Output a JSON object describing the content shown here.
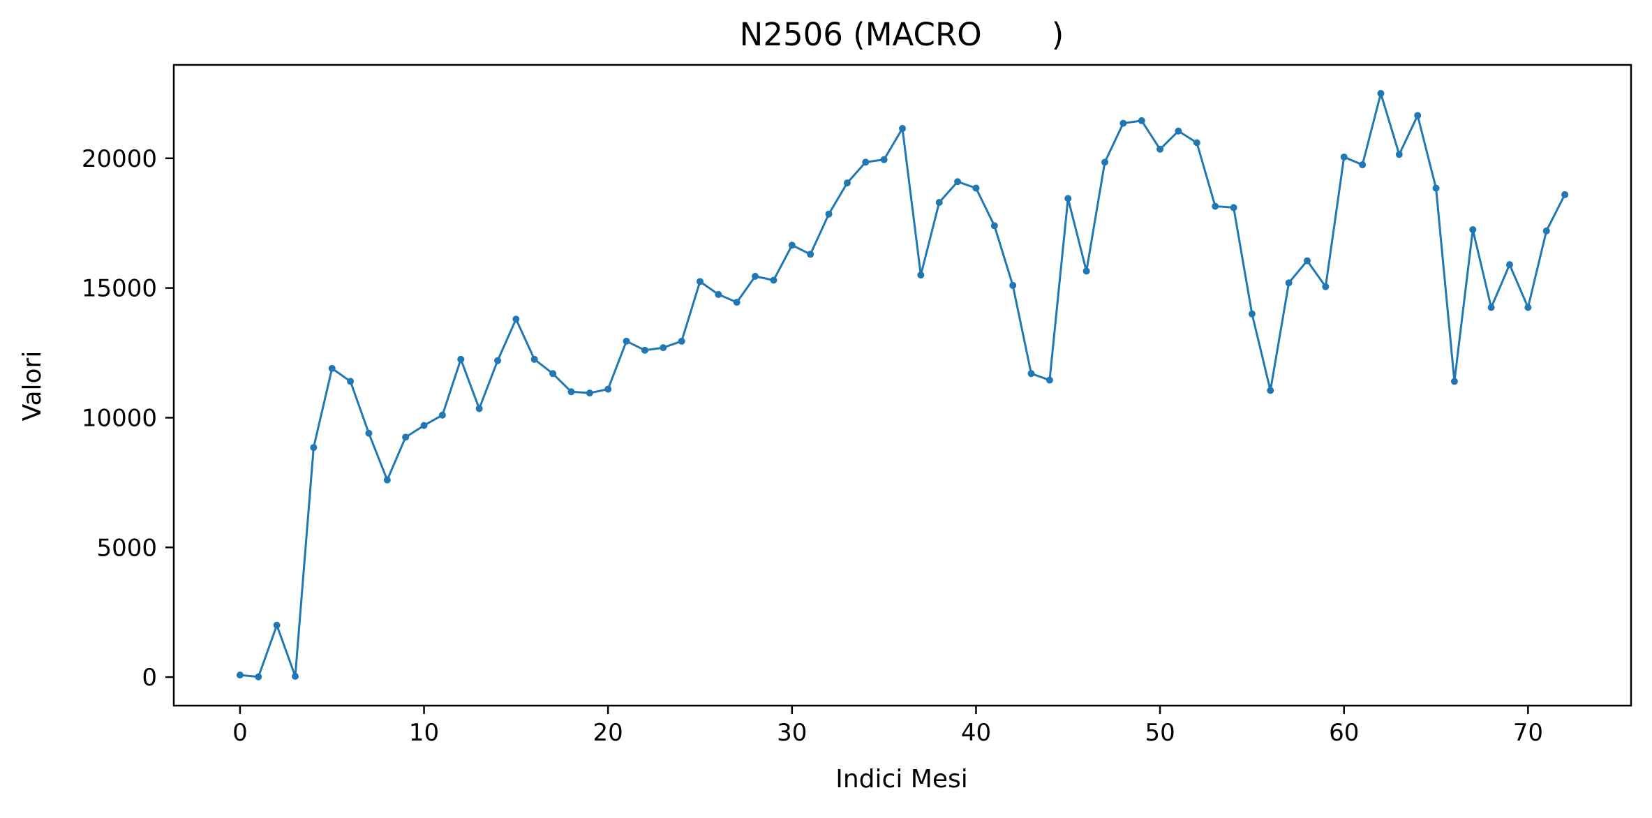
{
  "chart_data": {
    "type": "line",
    "title": "N2506 (MACRO       )",
    "xlabel": "Indici Mesi",
    "ylabel": "Valori",
    "xlim": [
      -3.6,
      75.6
    ],
    "ylim": [
      -1100,
      23600
    ],
    "xticks": [
      0,
      10,
      20,
      30,
      40,
      50,
      60,
      70
    ],
    "yticks": [
      0,
      5000,
      10000,
      15000,
      20000
    ],
    "xtick_labels": [
      "0",
      "10",
      "20",
      "30",
      "40",
      "50",
      "60",
      "70"
    ],
    "ytick_labels": [
      "0",
      "5000",
      "10000",
      "15000",
      "20000"
    ],
    "grid": false,
    "legend": false,
    "series": [
      {
        "color": "#1f77b4",
        "marker": "circle",
        "x": [
          0,
          1,
          2,
          3,
          4,
          5,
          6,
          7,
          8,
          9,
          10,
          11,
          12,
          13,
          14,
          15,
          16,
          17,
          18,
          19,
          20,
          21,
          22,
          23,
          24,
          25,
          26,
          27,
          28,
          29,
          30,
          31,
          32,
          33,
          34,
          35,
          36,
          37,
          38,
          39,
          40,
          41,
          42,
          43,
          44,
          45,
          46,
          47,
          48,
          49,
          50,
          51,
          52,
          53,
          54,
          55,
          56,
          57,
          58,
          59,
          60,
          61,
          62,
          63,
          64,
          65,
          66,
          67,
          68,
          69,
          70,
          71,
          72
        ],
        "values": [
          80,
          10,
          2000,
          30,
          8850,
          11900,
          11400,
          9400,
          7600,
          9250,
          9700,
          10100,
          12250,
          10350,
          12200,
          13800,
          12250,
          11700,
          11000,
          10950,
          11100,
          12950,
          12600,
          12700,
          12950,
          15250,
          14750,
          14450,
          15450,
          15300,
          16650,
          16300,
          17850,
          19050,
          19850,
          19950,
          21150,
          15500,
          18300,
          19100,
          18850,
          17400,
          15100,
          11700,
          11450,
          18450,
          15650,
          19850,
          21350,
          21450,
          20350,
          21050,
          20600,
          18150,
          18100,
          14000,
          11050,
          15200,
          16050,
          15050,
          20050,
          19750,
          22500,
          20150,
          21650,
          18850,
          11400,
          17250,
          14250,
          15900,
          14250,
          17200,
          18600
        ]
      }
    ]
  }
}
